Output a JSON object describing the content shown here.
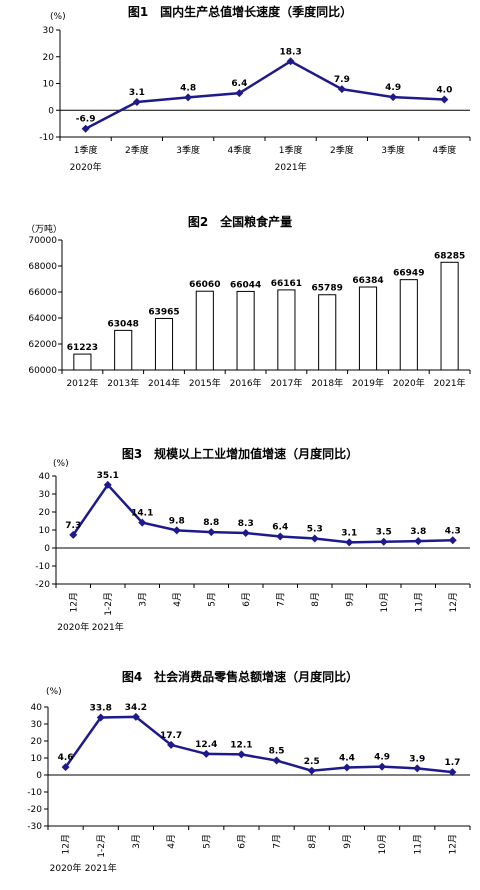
{
  "colors": {
    "line": "#1f1a8c",
    "axis": "#000000",
    "bar_fill": "#ffffff",
    "bar_stroke": "#000000"
  },
  "chart_data": [
    {
      "type": "line",
      "title": "图1　国内生产总值增长速度（季度同比）",
      "unit": "(%)",
      "categories": [
        "1季度",
        "2季度",
        "3季度",
        "4季度",
        "1季度",
        "2季度",
        "3季度",
        "4季度"
      ],
      "year_labels": [
        {
          "text": "2020年",
          "index": 0
        },
        {
          "text": "2021年",
          "index": 4
        }
      ],
      "values": [
        -6.9,
        3.1,
        4.8,
        6.4,
        18.3,
        7.9,
        4.9,
        4.0
      ],
      "value_labels": [
        "-6.9",
        "3.1",
        "4.8",
        "6.4",
        "18.3",
        "7.9",
        "4.9",
        "4.0"
      ],
      "ylim": [
        -10,
        30
      ],
      "yticks": [
        -10,
        0,
        10,
        20,
        30
      ],
      "color": "#1f1a8c",
      "grid": false
    },
    {
      "type": "bar",
      "title": "图2　全国粮食产量",
      "unit": "（万吨）",
      "categories": [
        "2012年",
        "2013年",
        "2014年",
        "2015年",
        "2016年",
        "2017年",
        "2018年",
        "2019年",
        "2020年",
        "2021年"
      ],
      "values": [
        61223,
        63048,
        63965,
        66060,
        66044,
        66161,
        65789,
        66384,
        66949,
        68285
      ],
      "value_labels": [
        "61223",
        "63048",
        "63965",
        "66060",
        "66044",
        "66161",
        "65789",
        "66384",
        "66949",
        "68285"
      ],
      "ylim": [
        60000,
        70000
      ],
      "yticks": [
        60000,
        62000,
        64000,
        66000,
        68000,
        70000
      ],
      "grid": false
    },
    {
      "type": "line",
      "title": "图3　规模以上工业增加值增速（月度同比）",
      "unit": "(%)",
      "categories": [
        "12月",
        "1-2月",
        "3月",
        "4月",
        "5月",
        "6月",
        "7月",
        "8月",
        "9月",
        "10月",
        "11月",
        "12月"
      ],
      "year_labels": [
        {
          "text": "2020年",
          "index": 0
        },
        {
          "text": "2021年",
          "index": 1
        }
      ],
      "values": [
        7.3,
        35.1,
        14.1,
        9.8,
        8.8,
        8.3,
        6.4,
        5.3,
        3.1,
        3.5,
        3.8,
        4.3
      ],
      "value_labels": [
        "7.3",
        "35.1",
        "14.1",
        "9.8",
        "8.8",
        "8.3",
        "6.4",
        "5.3",
        "3.1",
        "3.5",
        "3.8",
        "4.3"
      ],
      "ylim": [
        -20,
        40
      ],
      "yticks": [
        -20,
        -10,
        0,
        10,
        20,
        30,
        40
      ],
      "color": "#1f1a8c",
      "grid": false
    },
    {
      "type": "line",
      "title": "图4　社会消费品零售总额增速（月度同比）",
      "unit": "(%)",
      "categories": [
        "12月",
        "1-2月",
        "3月",
        "4月",
        "5月",
        "6月",
        "7月",
        "8月",
        "9月",
        "10月",
        "11月",
        "12月"
      ],
      "year_labels": [
        {
          "text": "2020年",
          "index": 0
        },
        {
          "text": "2021年",
          "index": 1
        }
      ],
      "values": [
        4.6,
        33.8,
        34.2,
        17.7,
        12.4,
        12.1,
        8.5,
        2.5,
        4.4,
        4.9,
        3.9,
        1.7
      ],
      "value_labels": [
        "4.6",
        "33.8",
        "34.2",
        "17.7",
        "12.4",
        "12.1",
        "8.5",
        "2.5",
        "4.4",
        "4.9",
        "3.9",
        "1.7"
      ],
      "ylim": [
        -30,
        40
      ],
      "yticks": [
        -30,
        -20,
        -10,
        0,
        10,
        20,
        30,
        40
      ],
      "color": "#1f1a8c",
      "grid": false
    }
  ]
}
